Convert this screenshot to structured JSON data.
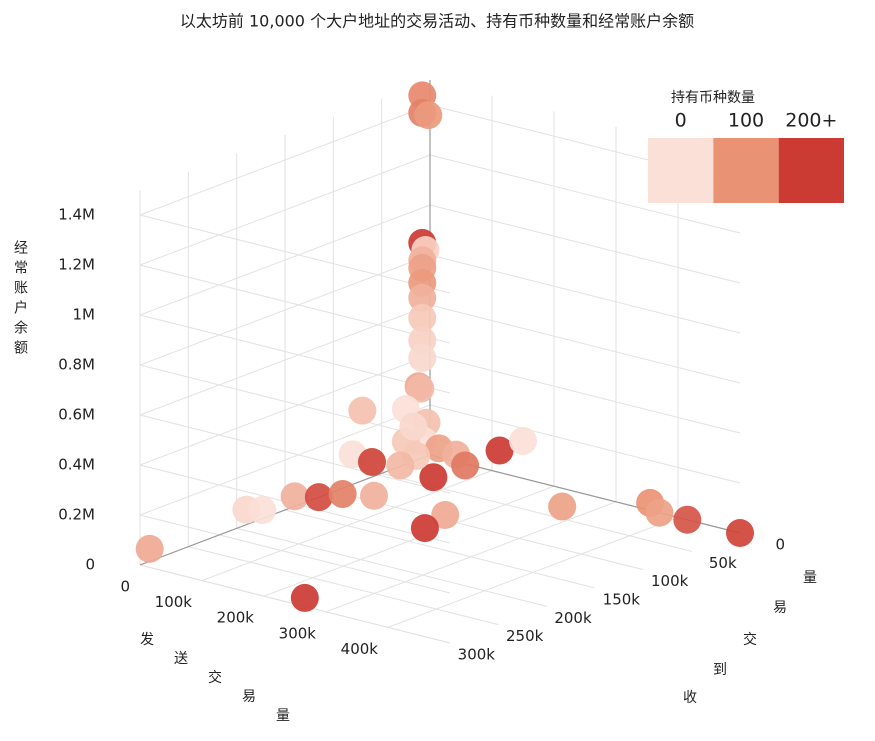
{
  "chart_data": {
    "type": "scatter3d",
    "title": "以太坊前 10,000 个大户地址的交易活动、持有币种数量和经常账户余额",
    "x_title": "发送交易量",
    "y_title": "收到交易量",
    "z_title": "经常账户余额",
    "xlim": [
      0,
      500000
    ],
    "ylim": [
      0,
      300000
    ],
    "zlim": [
      0,
      1500000
    ],
    "xticks": [
      0,
      {
        "value": 100000,
        "label": "100k"
      },
      {
        "value": 200000,
        "label": "200k"
      },
      {
        "value": 300000,
        "label": "300k"
      },
      {
        "value": 400000,
        "label": "400k"
      }
    ],
    "yticks": [
      0,
      {
        "value": 50000,
        "label": "50k"
      },
      {
        "value": 100000,
        "label": "100k"
      },
      {
        "value": 150000,
        "label": "150k"
      },
      {
        "value": 200000,
        "label": "200k"
      },
      {
        "value": 250000,
        "label": "250k"
      },
      {
        "value": 300000,
        "label": "300k"
      }
    ],
    "zticks": [
      0,
      {
        "value": 200000,
        "label": "0.2M"
      },
      {
        "value": 400000,
        "label": "0.4M"
      },
      {
        "value": 600000,
        "label": "0.6M"
      },
      {
        "value": 800000,
        "label": "0.8M"
      },
      {
        "value": 1000000,
        "label": "1M"
      },
      {
        "value": 1200000,
        "label": "1.2M"
      },
      {
        "value": 1400000,
        "label": "1.4M"
      }
    ],
    "colorbar": {
      "title": "持有币种数量",
      "ticks": [
        0,
        100,
        {
          "value": 200,
          "label": "200+"
        }
      ],
      "colors": [
        "#fbe0d7",
        "#ea9274",
        "#cc3b33"
      ]
    },
    "points": {
      "x": [
        0,
        0,
        5000,
        0,
        2000,
        0,
        0,
        0,
        0,
        0,
        0,
        0,
        5000,
        0,
        0,
        10000,
        20000,
        0,
        30000,
        50000,
        80000,
        120000,
        150000,
        60000,
        168000,
        182000,
        260000,
        355000,
        370000,
        415000,
        500000,
        0,
        0,
        0,
        0,
        15000,
        50000,
        244000,
        0,
        0,
        0,
        40000,
        30000,
        20000,
        10000
      ],
      "y": [
        8000,
        8000,
        5000,
        8000,
        6000,
        8000,
        8000,
        8000,
        8000,
        8000,
        8000,
        8000,
        15000,
        10000,
        25000,
        10000,
        20000,
        25000,
        10000,
        5000,
        15000,
        5000,
        0,
        35000,
        92000,
        122000,
        30000,
        0,
        0,
        0,
        0,
        290000,
        190000,
        140000,
        115000,
        100000,
        90000,
        286000,
        80000,
        60000,
        70000,
        40000,
        50000,
        30000,
        180000
      ],
      "z": [
        1450000,
        1380000,
        1370000,
        860000,
        830000,
        790000,
        760000,
        700000,
        640000,
        560000,
        470000,
        400000,
        300000,
        280000,
        220000,
        150000,
        100000,
        90000,
        60000,
        40000,
        30000,
        100000,
        150000,
        0,
        0,
        0,
        0,
        30000,
        0,
        0,
        0,
        50000,
        60000,
        40000,
        0,
        0,
        0,
        0,
        120000,
        60000,
        280000,
        80000,
        50000,
        170000,
        50000
      ],
      "c": [
        110,
        120,
        90,
        210,
        20,
        60,
        80,
        90,
        60,
        30,
        20,
        10,
        70,
        50,
        0,
        40,
        0,
        30,
        80,
        60,
        130,
        200,
        0,
        220,
        70,
        200,
        80,
        100,
        80,
        170,
        190,
        70,
        10,
        60,
        180,
        120,
        60,
        210,
        0,
        190,
        40,
        30,
        50,
        10,
        0
      ]
    }
  }
}
